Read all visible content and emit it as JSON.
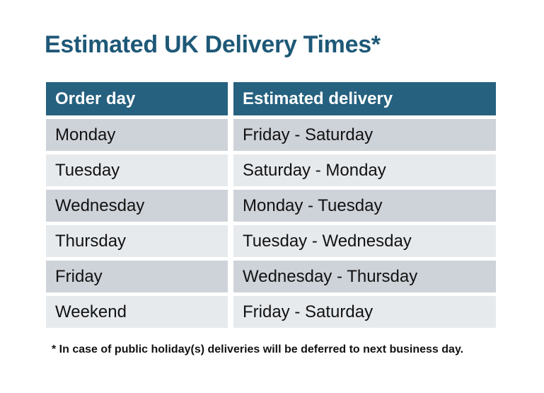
{
  "title": "Estimated UK Delivery Times*",
  "colors": {
    "title": "#1e5877",
    "header_bg": "#26617f",
    "header_text": "#ffffff",
    "row_dark": "#ced2d9",
    "row_light": "#e7eaed",
    "cell_text": "#121212",
    "background": "#ffffff"
  },
  "table": {
    "columns": [
      "Order day",
      "Estimated delivery"
    ],
    "rows": [
      {
        "order_day": "Monday",
        "estimated_delivery": "Friday - Saturday"
      },
      {
        "order_day": "Tuesday",
        "estimated_delivery": "Saturday - Monday"
      },
      {
        "order_day": "Wednesday",
        "estimated_delivery": "Monday - Tuesday"
      },
      {
        "order_day": "Thursday",
        "estimated_delivery": "Tuesday - Wednesday"
      },
      {
        "order_day": "Friday",
        "estimated_delivery": "Wednesday - Thursday"
      },
      {
        "order_day": "Weekend",
        "estimated_delivery": "Friday - Saturday"
      }
    ]
  },
  "footnote": "* In case of public holiday(s) deliveries will be deferred to next business day."
}
